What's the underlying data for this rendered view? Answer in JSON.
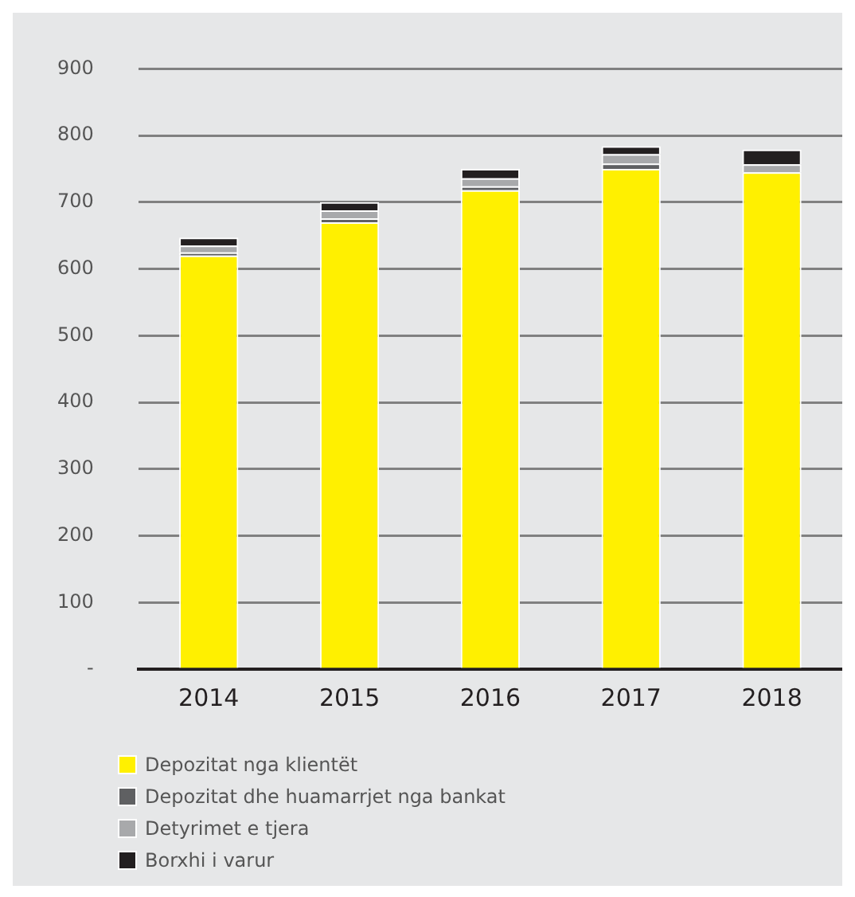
{
  "chart_data": {
    "type": "bar",
    "stacked": true,
    "categories": [
      "2014",
      "2015",
      "2016",
      "2017",
      "2018"
    ],
    "series": [
      {
        "name": "Depozitat nga klientët",
        "color": "#fff000",
        "values": [
          620,
          670,
          718,
          750,
          745
        ]
      },
      {
        "name": "Depozitat dhe huamarrjet nga bankat",
        "color": "#5f6062",
        "values": [
          5,
          6,
          6,
          8,
          null
        ]
      },
      {
        "name": "Detyrimet e tjera",
        "color": "#a8a9ab",
        "values": [
          10,
          12,
          12,
          14,
          12
        ]
      },
      {
        "name": "Borxhi i varur",
        "color": "#231f20",
        "values": [
          12,
          12,
          14,
          12,
          22
        ]
      }
    ],
    "ylim": [
      0,
      900
    ],
    "yticks": [
      {
        "value": 0,
        "label": "-"
      },
      100,
      200,
      300,
      400,
      500,
      600,
      700,
      800,
      900
    ],
    "grid": "y",
    "legend": "bottom"
  }
}
